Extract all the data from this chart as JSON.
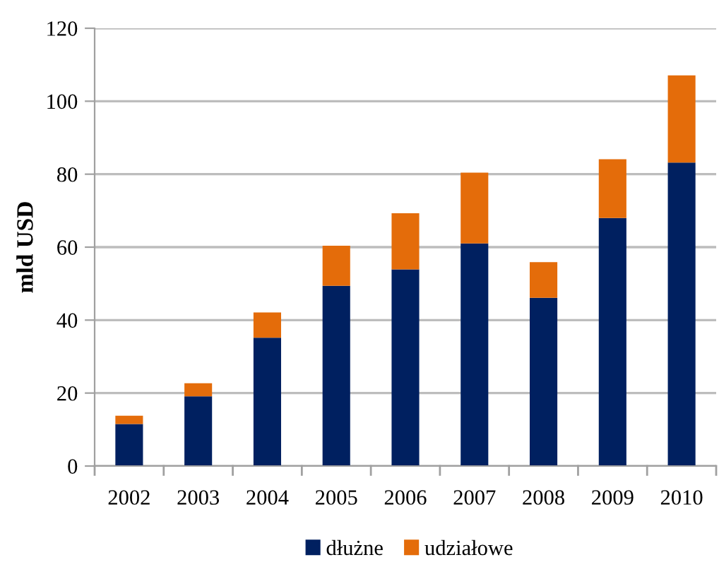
{
  "chart_data": {
    "type": "bar",
    "stacked": true,
    "ylabel": "mld USD",
    "categories": [
      "2002",
      "2003",
      "2004",
      "2005",
      "2006",
      "2007",
      "2008",
      "2009",
      "2010"
    ],
    "series": [
      {
        "name": "dłużne",
        "color": "#002060",
        "values": [
          11.5,
          19.1,
          35.2,
          49.4,
          53.9,
          61.0,
          46.1,
          68.0,
          83.2
        ]
      },
      {
        "name": "udziałowe",
        "color": "#e46c0a",
        "values": [
          2.3,
          3.6,
          6.9,
          11.0,
          15.4,
          19.4,
          9.8,
          16.1,
          23.9
        ]
      }
    ],
    "ylim": [
      0,
      120
    ],
    "yticks": [
      0,
      20,
      40,
      60,
      80,
      100,
      120
    ],
    "grid": "y",
    "legend": "bottom"
  }
}
